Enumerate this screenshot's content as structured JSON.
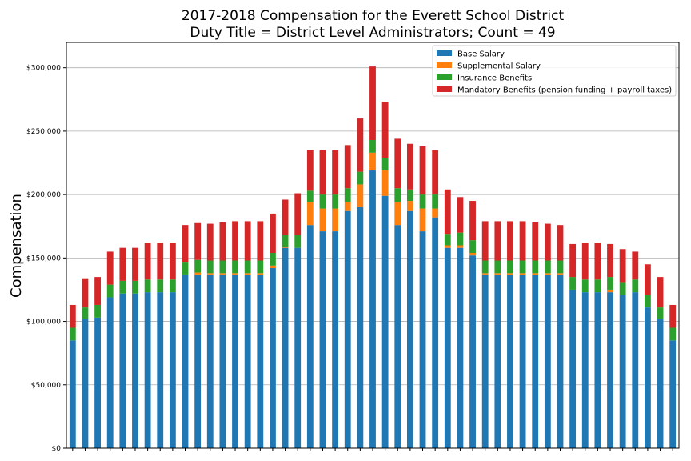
{
  "chart_data": {
    "type": "bar",
    "stacked": true,
    "title": [
      "2017-2018 Compensation for the Everett School District",
      "Duty Title = District Level Administrators; Count = 49"
    ],
    "xlabel": "",
    "ylabel": "Compensation",
    "ylim": [
      0,
      320000
    ],
    "yticks": [
      0,
      50000,
      100000,
      150000,
      200000,
      250000,
      300000
    ],
    "ytick_labels": [
      "$0",
      "$50,000",
      "$100,000",
      "$150,000",
      "$200,000",
      "$250,000",
      "$300,000"
    ],
    "grid": "horizontal",
    "legend_position": "top-right",
    "series": [
      {
        "name": "Base Salary",
        "color": "#1f77b4",
        "values": [
          85000,
          102000,
          103000,
          119000,
          122000,
          122000,
          123000,
          123000,
          123000,
          137000,
          137000,
          137000,
          137000,
          137000,
          137000,
          137000,
          142000,
          158000,
          158000,
          176000,
          171000,
          171000,
          187000,
          190000,
          219000,
          199000,
          176000,
          187000,
          171000,
          182000,
          158000,
          158000,
          152000,
          137000,
          137000,
          137000,
          137000,
          137000,
          137000,
          137000,
          125000,
          123000,
          123000,
          123000,
          121000,
          123000,
          111000,
          102000,
          85000
        ]
      },
      {
        "name": "Supplemental Salary",
        "color": "#ff7f0e",
        "values": [
          0,
          0,
          0,
          0,
          0,
          0,
          0,
          0,
          0,
          0,
          1500,
          1000,
          1000,
          1000,
          1000,
          1000,
          2000,
          1000,
          0,
          18000,
          18000,
          18000,
          7000,
          18000,
          14000,
          20000,
          18000,
          8000,
          18000,
          7000,
          2000,
          2000,
          2000,
          1000,
          1000,
          1000,
          1000,
          1000,
          1000,
          1000,
          0,
          0,
          0,
          2000,
          0,
          0,
          0,
          0,
          0
        ]
      },
      {
        "name": "Insurance Benefits",
        "color": "#2ca02c",
        "values": [
          10000,
          9000,
          10000,
          10000,
          10000,
          10000,
          10000,
          10000,
          10000,
          10000,
          10000,
          10000,
          10000,
          10000,
          10000,
          10000,
          10000,
          9000,
          10000,
          9000,
          11000,
          11000,
          11000,
          10000,
          10000,
          10000,
          11000,
          9000,
          11000,
          11000,
          9000,
          10000,
          10000,
          10000,
          10000,
          10000,
          10000,
          10000,
          10000,
          10000,
          10000,
          10000,
          10000,
          10000,
          10000,
          10000,
          10000,
          9000,
          10000
        ]
      },
      {
        "name": "Mandatory Benefits (pension funding + payroll taxes)",
        "color": "#d62728",
        "values": [
          18000,
          23000,
          22000,
          26000,
          26000,
          26000,
          29000,
          29000,
          29000,
          29000,
          29000,
          29000,
          30000,
          31000,
          31000,
          31000,
          31000,
          28000,
          33000,
          32000,
          35000,
          35000,
          34000,
          42000,
          58000,
          44000,
          39000,
          36000,
          38000,
          35000,
          35000,
          28000,
          31000,
          31000,
          31000,
          31000,
          31000,
          30000,
          29000,
          28000,
          26000,
          29000,
          29000,
          26000,
          26000,
          22000,
          24000,
          24000,
          18000
        ]
      }
    ]
  }
}
